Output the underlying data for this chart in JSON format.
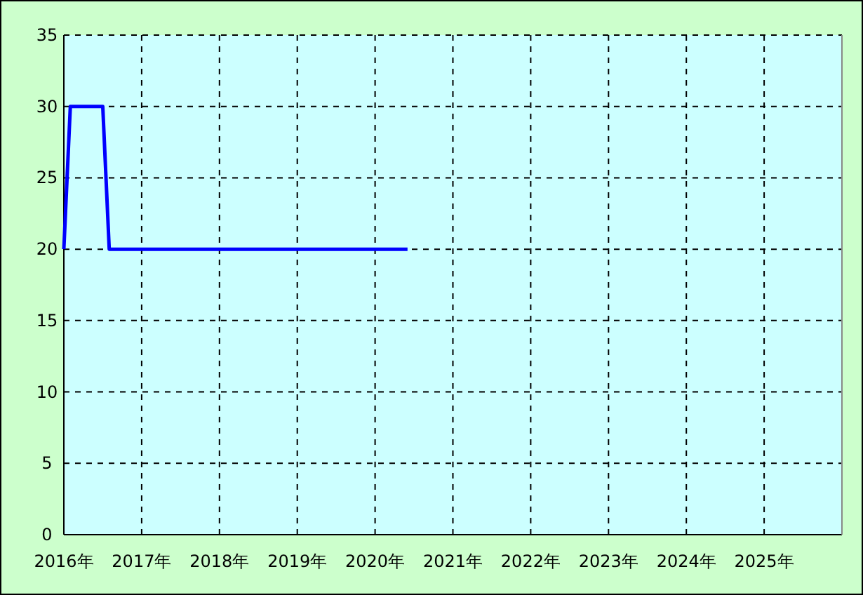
{
  "chart_data": {
    "type": "line",
    "x": [
      "2016-01",
      "2016-02",
      "2016-07",
      "2016-08",
      "2020-06"
    ],
    "series": [
      {
        "color": "#0000ff",
        "values": [
          20,
          30,
          30,
          20,
          20
        ]
      }
    ],
    "xlim": [
      "2016-01",
      "2026-01"
    ],
    "xticks": [
      {
        "value": "2016-01",
        "label": "2016年"
      },
      {
        "value": "2017-01",
        "label": "2017年"
      },
      {
        "value": "2018-01",
        "label": "2018年"
      },
      {
        "value": "2019-01",
        "label": "2019年"
      },
      {
        "value": "2020-01",
        "label": "2020年"
      },
      {
        "value": "2021-01",
        "label": "2021年"
      },
      {
        "value": "2022-01",
        "label": "2022年"
      },
      {
        "value": "2023-01",
        "label": "2023年"
      },
      {
        "value": "2024-01",
        "label": "2024年"
      },
      {
        "value": "2025-01",
        "label": "2025年"
      }
    ],
    "ylim": [
      0,
      35
    ],
    "yticks": [
      0,
      5,
      10,
      15,
      20,
      25,
      30,
      35
    ],
    "grid": true
  }
}
